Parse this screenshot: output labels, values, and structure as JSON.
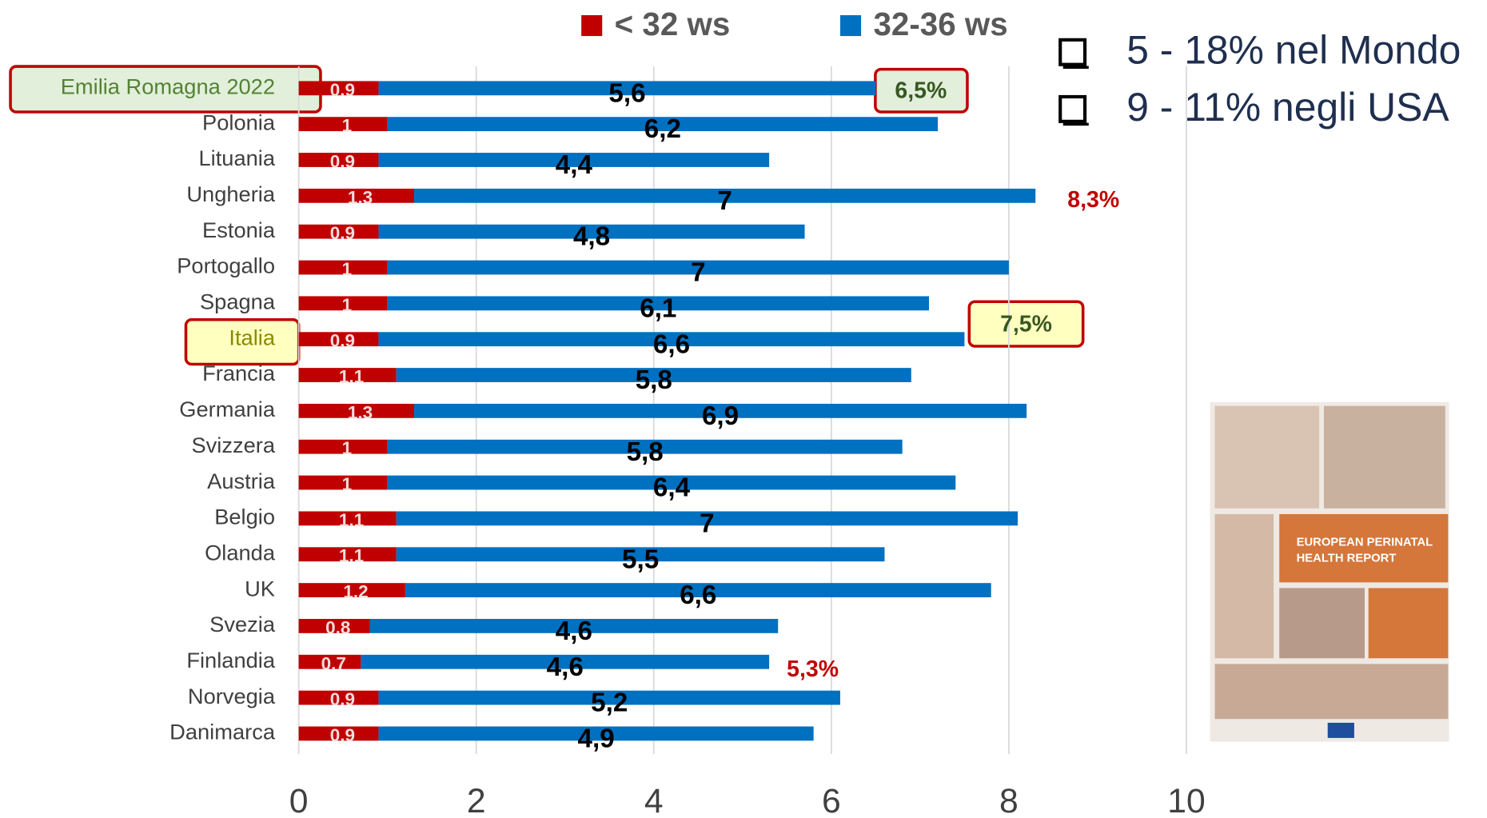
{
  "chart_data": {
    "type": "stacked-barh",
    "categories": [
      "Emilia Romagna 2022",
      "Polonia",
      "Lituania",
      "Ungheria",
      "Estonia",
      "Portogallo",
      "Spagna",
      "Italia",
      "Francia",
      "Germania",
      "Svizzera",
      "Austria",
      "Belgio",
      "Olanda",
      "UK",
      "Svezia",
      "Finlandia",
      "Norvegia",
      "Danimarca"
    ],
    "series": [
      {
        "name": "< 32 ws",
        "color": "#c00000",
        "values": [
          0.9,
          1,
          0.9,
          1.3,
          0.9,
          1,
          1,
          0.9,
          1.1,
          1.3,
          1,
          1,
          1.1,
          1.1,
          1.2,
          0.8,
          0.7,
          0.9,
          0.9
        ]
      },
      {
        "name": "32-36 ws",
        "color": "#0070c0",
        "values": [
          5.6,
          6.2,
          4.4,
          7,
          4.8,
          7,
          6.1,
          6.6,
          5.8,
          6.9,
          5.8,
          6.4,
          7,
          5.5,
          6.6,
          4.6,
          4.6,
          5.2,
          4.9
        ],
        "value_labels": [
          "5,6",
          "6,2",
          "4,4",
          "7",
          "4,8",
          "7",
          "6,1",
          "6,6",
          "5,8",
          "6,9",
          "5,8",
          "6,4",
          "7",
          "5,5",
          "6,6",
          "4,6",
          "4,6",
          "5,2",
          "4,9"
        ]
      }
    ],
    "xlim": [
      0,
      10
    ],
    "xticks": [
      0,
      2,
      4,
      6,
      8,
      10
    ],
    "grid": true,
    "legend": "top",
    "annotations": [
      "6,5%",
      "8,3%",
      "7,5%",
      "5,3%"
    ],
    "notes": [
      "5 - 18% nel Mondo",
      "9 - 11% negli USA"
    ],
    "report_title": [
      "EUROPEAN PERINATAL",
      "HEALTH REPORT"
    ]
  }
}
